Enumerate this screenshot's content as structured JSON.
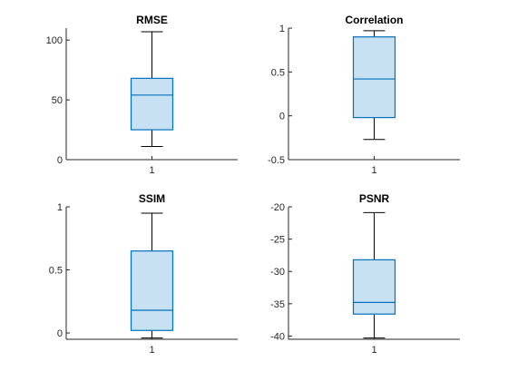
{
  "chart_data": [
    {
      "type": "box",
      "title": "RMSE",
      "categories": [
        "1"
      ],
      "ylim": [
        0,
        110
      ],
      "yticks": [
        0,
        50,
        100
      ],
      "ytick_labels": [
        "0",
        "50",
        "100"
      ],
      "box": {
        "min": 11,
        "q1": 25,
        "median": 54,
        "q3": 68,
        "max": 107
      }
    },
    {
      "type": "box",
      "title": "Correlation",
      "categories": [
        "1"
      ],
      "ylim": [
        -0.5,
        1
      ],
      "yticks": [
        -0.5,
        0,
        0.5,
        1
      ],
      "ytick_labels": [
        "-0.5",
        "0",
        "0.5",
        "1"
      ],
      "box": {
        "min": -0.27,
        "q1": -0.02,
        "median": 0.42,
        "q3": 0.9,
        "max": 0.97
      }
    },
    {
      "type": "box",
      "title": "SSIM",
      "categories": [
        "1"
      ],
      "ylim": [
        -0.05,
        1
      ],
      "yticks": [
        0,
        0.5,
        1
      ],
      "ytick_labels": [
        "0",
        "0.5",
        "1"
      ],
      "box": {
        "min": -0.04,
        "q1": 0.02,
        "median": 0.18,
        "q3": 0.65,
        "max": 0.95
      }
    },
    {
      "type": "box",
      "title": "PSNR",
      "categories": [
        "1"
      ],
      "ylim": [
        -40.5,
        -20
      ],
      "yticks": [
        -40,
        -35,
        -30,
        -25,
        -20
      ],
      "ytick_labels": [
        "-40",
        "-35",
        "-30",
        "-25",
        "-20"
      ],
      "box": {
        "min": -40.3,
        "q1": -36.6,
        "median": -34.8,
        "q3": -28.2,
        "max": -20.9
      }
    }
  ]
}
